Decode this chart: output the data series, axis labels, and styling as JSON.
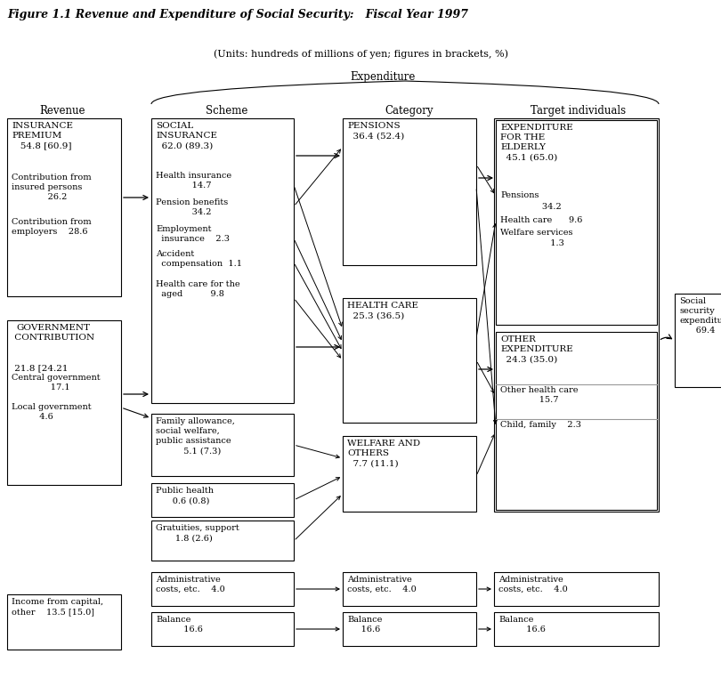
{
  "title": "Figure 1.1 Revenue and Expenditure of Social Security:   Fiscal Year 1997",
  "subtitle": "(Units: hundreds of millions of yen; figures in brackets, %)",
  "expenditure_label": "Expenditure",
  "col_labels": [
    "Revenue",
    "Scheme",
    "Category",
    "Target individuals"
  ],
  "bg_color": "#ffffff"
}
